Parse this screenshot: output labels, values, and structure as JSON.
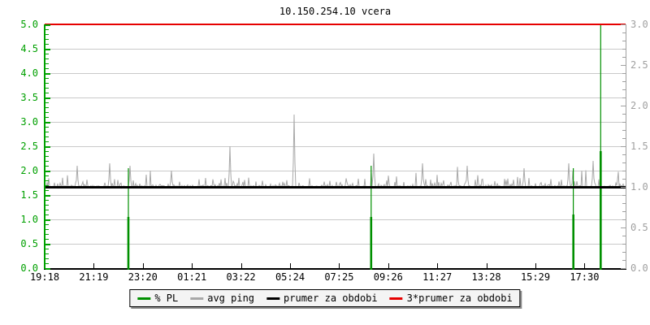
{
  "title": "10.150.254.10 vcera",
  "chart_data": {
    "type": "line",
    "title": "10.150.254.10 vcera",
    "background": "#ffffff",
    "grid_color": "#c9c9c9",
    "grid": true,
    "x_axis": {
      "color": "#000000",
      "tick_labels": [
        "19:18",
        "21:19",
        "23:20",
        "01:21",
        "03:22",
        "05:24",
        "07:25",
        "09:26",
        "11:27",
        "13:28",
        "15:29",
        "17:30"
      ]
    },
    "left_axis": {
      "min": 0,
      "max": 5,
      "label_step": 0.5,
      "minor_step": 0.1,
      "color": "#00a000",
      "labels": [
        "0.0",
        "0.5",
        "1.0",
        "1.5",
        "2.0",
        "2.5",
        "3.0",
        "3.5",
        "4.0",
        "4.5",
        "5.0"
      ]
    },
    "right_axis": {
      "min": 0,
      "max": 3,
      "label_step": 0.5,
      "minor_step": 0.1,
      "color": "#a0a0a0",
      "labels": [
        "0.0",
        "0.5",
        "1.0",
        "1.5",
        "2.0",
        "2.5",
        "3.0"
      ]
    },
    "series": [
      {
        "name": "% PL",
        "type": "impulse",
        "color": "#009000",
        "spikes": [
          {
            "x_frac": 0.144,
            "max": 2.05,
            "solid": 1.05
          },
          {
            "x_frac": 0.562,
            "max": 2.1,
            "solid": 1.05
          },
          {
            "x_frac": 0.91,
            "max": 2.05,
            "solid": 1.1
          },
          {
            "x_frac": 0.957,
            "max": 5.0,
            "solid": 2.4
          }
        ]
      },
      {
        "name": "avg ping",
        "type": "noisy-line",
        "color": "#a8a8a8",
        "baseline": 1.645,
        "jitter": 0.05,
        "bump_prob": 0.3,
        "bump_amp": 0.18,
        "spike_prob": 0.05,
        "spike_amp": 0.35,
        "seed": 7,
        "peaks": [
          {
            "x_frac": 0.056,
            "value": 2.1
          },
          {
            "x_frac": 0.112,
            "value": 2.15
          },
          {
            "x_frac": 0.147,
            "value": 2.1
          },
          {
            "x_frac": 0.218,
            "value": 2.0
          },
          {
            "x_frac": 0.319,
            "value": 2.5
          },
          {
            "x_frac": 0.429,
            "value": 3.15
          },
          {
            "x_frac": 0.566,
            "value": 2.35
          },
          {
            "x_frac": 0.65,
            "value": 2.15
          },
          {
            "x_frac": 0.727,
            "value": 2.1
          },
          {
            "x_frac": 0.825,
            "value": 2.05
          },
          {
            "x_frac": 0.902,
            "value": 2.15
          },
          {
            "x_frac": 0.944,
            "value": 2.2
          }
        ]
      },
      {
        "name": "prumer za obdobi",
        "type": "hline",
        "color": "#000000",
        "value": 1.667,
        "thickness": 3
      },
      {
        "name": "3*prumer za obdobi",
        "type": "hline",
        "color": "#e60000",
        "value": 5.0,
        "thickness": 2
      }
    ],
    "legend": {
      "position": "bottom-center",
      "items": [
        {
          "label": "% PL",
          "color": "#009000"
        },
        {
          "label": "avg ping",
          "color": "#a8a8a8"
        },
        {
          "label": "prumer za obdobi",
          "color": "#000000"
        },
        {
          "label": "3*prumer za obdobi",
          "color": "#e60000"
        }
      ]
    }
  }
}
